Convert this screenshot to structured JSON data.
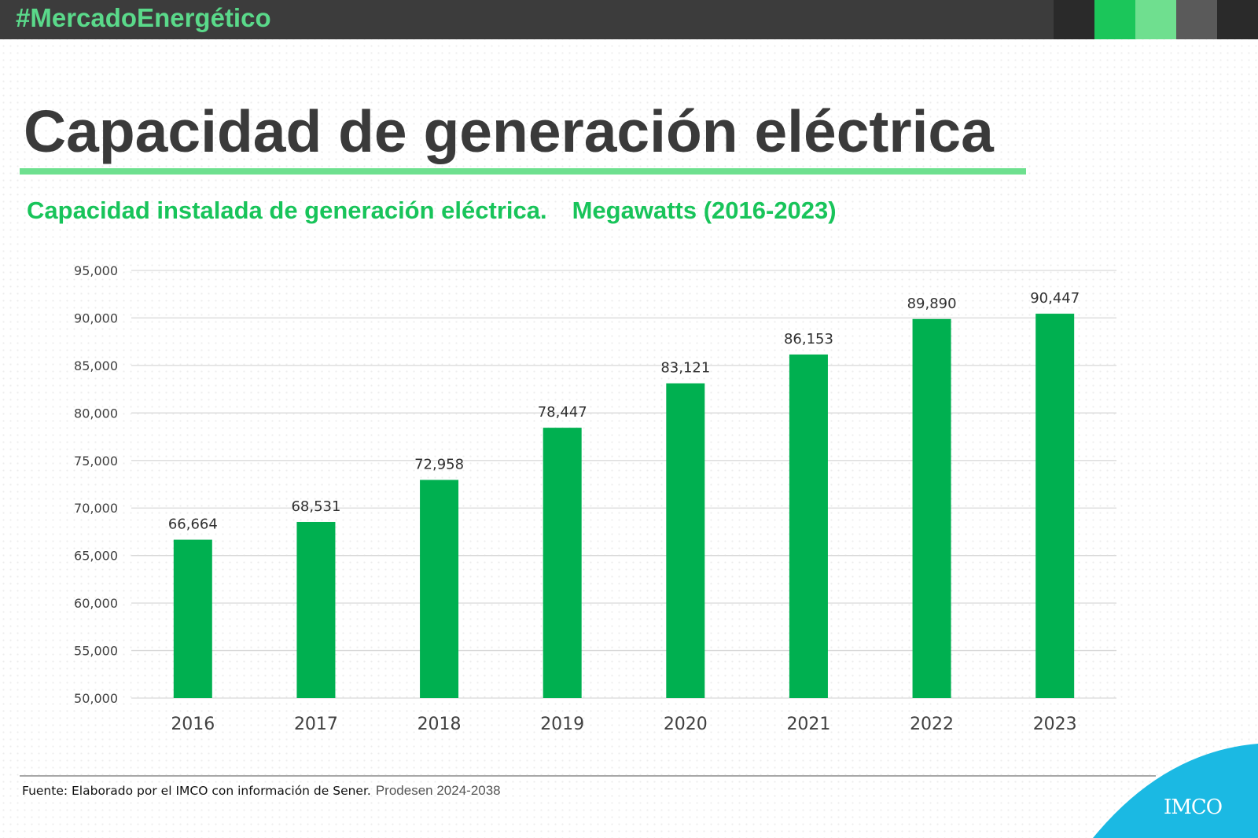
{
  "header": {
    "hashtag": "#MercadoEnergético",
    "accent_blocks": [
      "#2a2a2a",
      "#1bc65a",
      "#6fdf8f",
      "#5a5a5a",
      "#2a2a2a"
    ]
  },
  "page_title": "Capacidad de generación eléctrica",
  "subtitle": {
    "main": "Capacidad instalada de generación eléctrica.",
    "unit": "Megawatts (2016-2023)"
  },
  "colors": {
    "bar": "#00b050",
    "title": "#3a3a3a",
    "accent_green": "#18c45a",
    "underline": "#6ee08f",
    "gridline": "#d9d9d9",
    "logo_bg": "#1bb9e3"
  },
  "chart_data": {
    "type": "bar",
    "title": "Capacidad instalada de generación eléctrica. Megawatts (2016-2023)",
    "xlabel": "",
    "ylabel": "",
    "categories": [
      "2016",
      "2017",
      "2018",
      "2019",
      "2020",
      "2021",
      "2022",
      "2023"
    ],
    "values": [
      66664,
      68531,
      72958,
      78447,
      83121,
      86153,
      89890,
      90447
    ],
    "value_labels": [
      "66,664",
      "68,531",
      "72,958",
      "78,447",
      "83,121",
      "86,153",
      "89,890",
      "90,447"
    ],
    "ylim": [
      50000,
      95000
    ],
    "yticks": [
      50000,
      55000,
      60000,
      65000,
      70000,
      75000,
      80000,
      85000,
      90000,
      95000
    ],
    "ytick_labels": [
      "50,000",
      "55,000",
      "60,000",
      "65,000",
      "70,000",
      "75,000",
      "80,000",
      "85,000",
      "90,000",
      "95,000"
    ],
    "grid": true,
    "legend": "none"
  },
  "footer": {
    "source": "Fuente: Elaborado por el IMCO con información de Sener.",
    "source_extra": "Prodesen 2024-2038",
    "logo_text": "IMCO"
  }
}
